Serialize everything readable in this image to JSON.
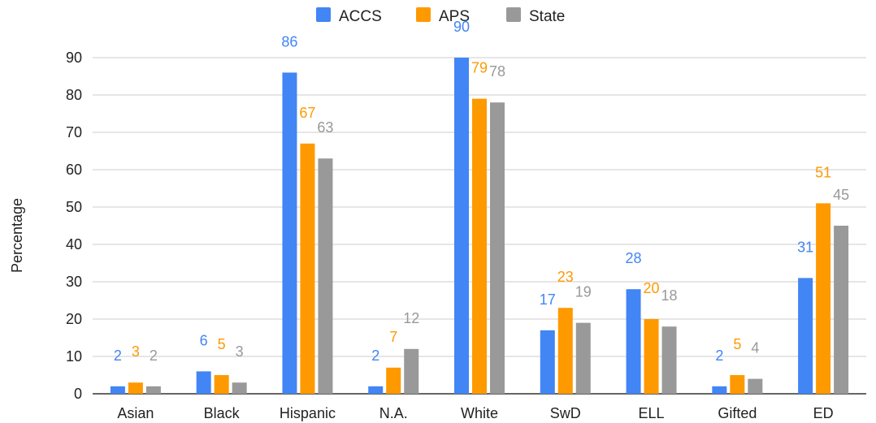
{
  "chart_data": {
    "type": "bar",
    "title": "",
    "xlabel": "",
    "ylabel": "Percentage",
    "ylim": [
      0,
      90
    ],
    "yticks": [
      0,
      10,
      20,
      30,
      40,
      50,
      60,
      70,
      80,
      90
    ],
    "grid": true,
    "legend_position": "top",
    "categories": [
      "Asian",
      "Black",
      "Hispanic",
      "N.A.",
      "White",
      "SwD",
      "ELL",
      "Gifted",
      "ED"
    ],
    "series": [
      {
        "name": "ACCS",
        "color": "#4285f4",
        "values": [
          2,
          6,
          86,
          2,
          90,
          17,
          28,
          2,
          31
        ]
      },
      {
        "name": "APS",
        "color": "#ff9900",
        "values": [
          3,
          5,
          67,
          7,
          79,
          23,
          20,
          5,
          51
        ]
      },
      {
        "name": "State",
        "color": "#999999",
        "values": [
          2,
          3,
          63,
          12,
          78,
          19,
          18,
          4,
          45
        ]
      }
    ]
  }
}
